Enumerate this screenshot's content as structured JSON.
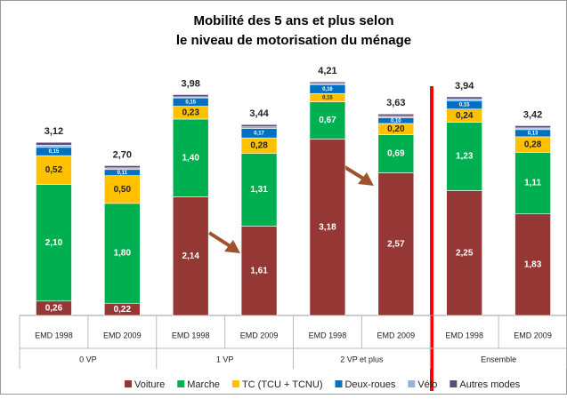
{
  "chart_data": {
    "type": "stacked_bar",
    "title": [
      "Mobilité des 5 ans et plus selon",
      "le niveau de motorisation du ménage"
    ],
    "categories": [
      "EMD 1998",
      "EMD 2009",
      "EMD 1998",
      "EMD 2009",
      "EMD 1998",
      "EMD 2009",
      "EMD 1998",
      "EMD 2009"
    ],
    "groups": [
      "0 VP",
      "1 VP",
      "2 VP et plus",
      "Ensemble"
    ],
    "ylim": [
      0,
      4.5
    ],
    "series": [
      {
        "name": "Voiture",
        "color": "#953735",
        "values": [
          0.26,
          0.22,
          2.14,
          1.61,
          3.18,
          2.57,
          2.25,
          1.83
        ],
        "value_labels": [
          "0,26",
          "0,22",
          "2,14",
          "1,61",
          "3,18",
          "2,57",
          "2,25",
          "1,83"
        ]
      },
      {
        "name": "Marche",
        "color": "#00b050",
        "values": [
          2.1,
          1.8,
          1.4,
          1.31,
          0.67,
          0.69,
          1.23,
          1.11
        ],
        "value_labels": [
          "2,10",
          "1,80",
          "1,40",
          "1,31",
          "0,67",
          "0,69",
          "1,23",
          "1,11"
        ]
      },
      {
        "name": "TC (TCU + TCNU)",
        "color": "#ffc000",
        "values": [
          0.52,
          0.5,
          0.23,
          0.28,
          0.15,
          0.2,
          0.24,
          0.28
        ],
        "value_labels": [
          "0,52",
          "0,50",
          "0,23",
          "0,28",
          "0,15",
          "0,20",
          "0,24",
          "0,28"
        ]
      },
      {
        "name": "Deux-roues",
        "color": "#0070c0",
        "values": [
          0.15,
          0.11,
          0.15,
          0.17,
          0.16,
          0.1,
          0.15,
          0.13
        ],
        "value_labels": [
          "0,15",
          "0,11",
          "0,15",
          "0,17",
          "0,16",
          "0,10",
          "0,15",
          "0,13"
        ]
      },
      {
        "name": "Vélo",
        "color": "#95b3d7",
        "values": [
          0.04,
          0.03,
          0.02,
          0.03,
          0.02,
          0.03,
          0.03,
          0.03
        ]
      },
      {
        "name": "Autres modes",
        "color": "#604a7b",
        "values": [
          0.05,
          0.04,
          0.04,
          0.04,
          0.03,
          0.04,
          0.04,
          0.04
        ]
      }
    ],
    "totals": {
      "values": [
        3.12,
        2.7,
        3.98,
        3.44,
        4.21,
        3.63,
        3.94,
        3.42
      ],
      "value_labels": [
        "3,12",
        "2,70",
        "3,98",
        "3,44",
        "4,21",
        "3,63",
        "3,94",
        "3,42"
      ]
    }
  }
}
